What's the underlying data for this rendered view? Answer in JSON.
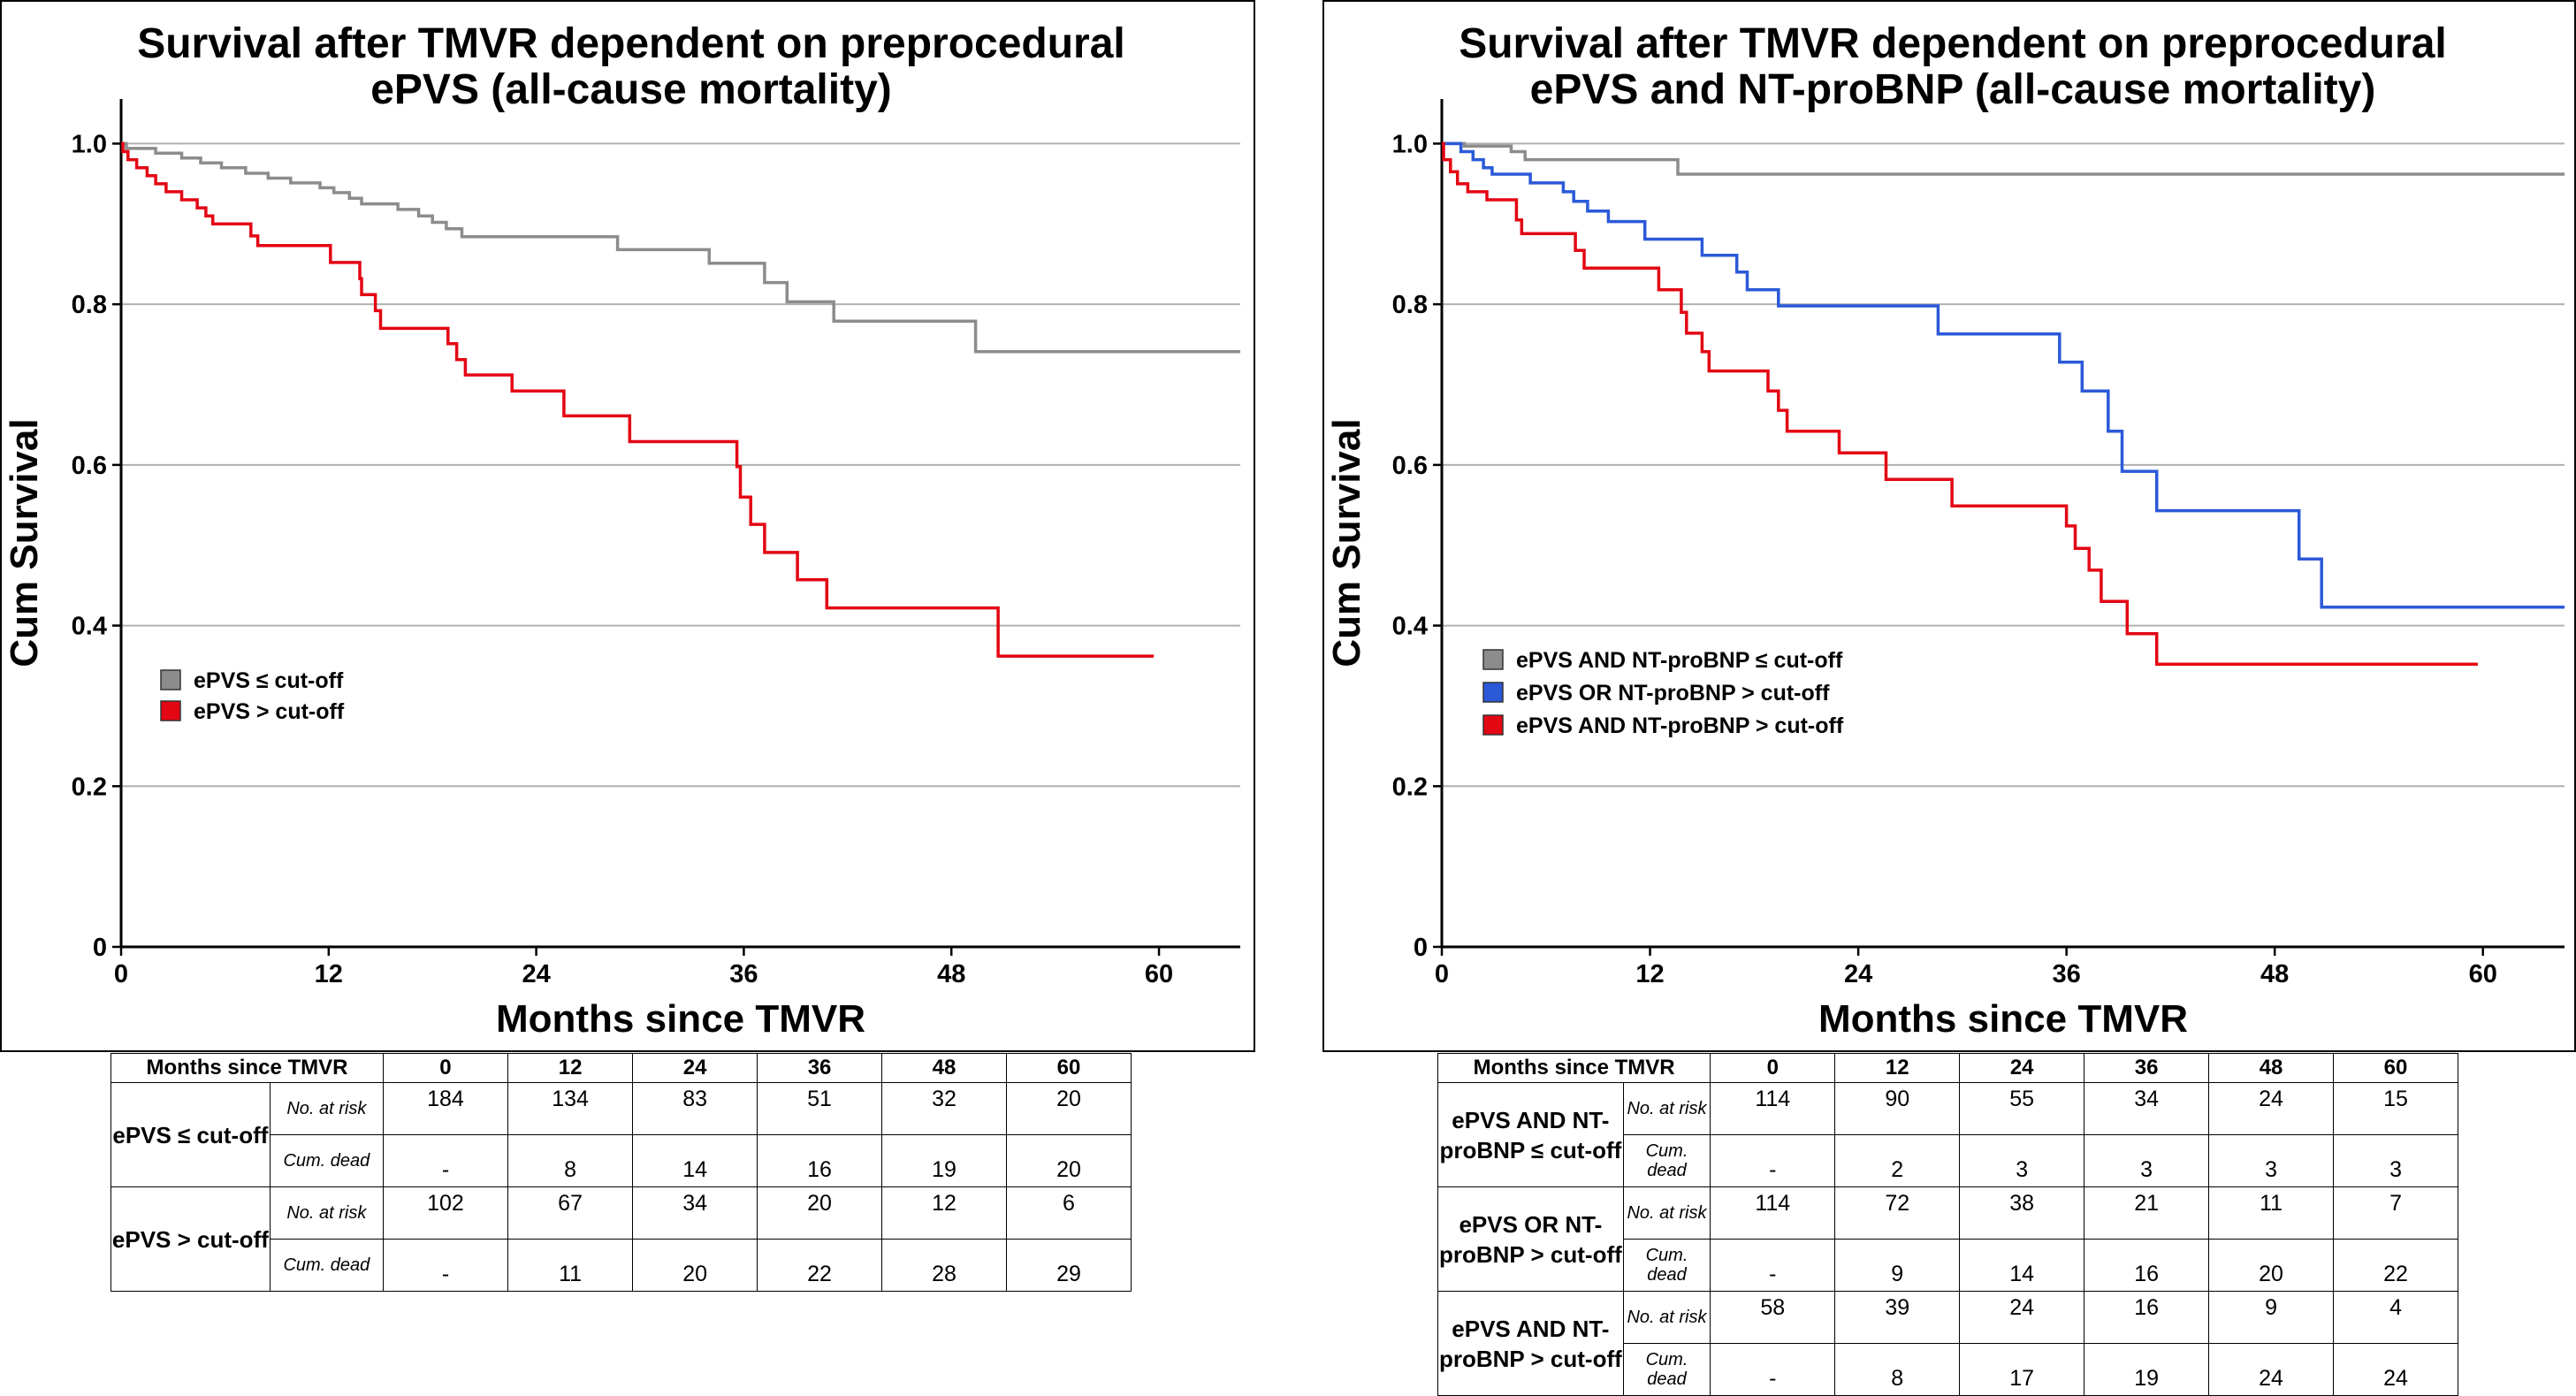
{
  "chart_data": [
    {
      "type": "line",
      "title": [
        "Survival after TMVR dependent on preprocedural",
        "ePVS (all-cause mortality)"
      ],
      "xlabel": "Months since TMVR",
      "ylabel": "Cum Survival",
      "xlim": [
        0,
        64.7
      ],
      "ylim": [
        0,
        1.05
      ],
      "xticks": [
        "0",
        "12",
        "24",
        "36",
        "48",
        "60"
      ],
      "yticks": [
        "0",
        "0.2",
        "0.4",
        "0.6",
        "0.8",
        "1.0"
      ],
      "grid": "horizontal",
      "legend_position": "center-left",
      "series": [
        {
          "name": "ePVS ≤ cut-off",
          "color": "#8c8c8c",
          "points": [
            [
              0,
              1.0
            ],
            [
              0.3,
              0.994
            ],
            [
              2,
              0.988
            ],
            [
              3.5,
              0.982
            ],
            [
              4.6,
              0.976
            ],
            [
              5.8,
              0.97
            ],
            [
              7.2,
              0.963
            ],
            [
              8.5,
              0.957
            ],
            [
              9.8,
              0.951
            ],
            [
              11.5,
              0.945
            ],
            [
              12.3,
              0.939
            ],
            [
              13.2,
              0.932
            ],
            [
              13.9,
              0.925
            ],
            [
              16,
              0.918
            ],
            [
              17.2,
              0.91
            ],
            [
              18,
              0.902
            ],
            [
              18.8,
              0.894
            ],
            [
              19.7,
              0.884
            ],
            [
              28.7,
              0.868
            ],
            [
              34,
              0.851
            ],
            [
              37.2,
              0.827
            ],
            [
              38.5,
              0.803
            ],
            [
              41.2,
              0.779
            ],
            [
              49.4,
              0.741
            ],
            [
              64.7,
              0.741
            ]
          ]
        },
        {
          "name": "ePVS > cut-off",
          "color": "#e30613",
          "points": [
            [
              0,
              1.0
            ],
            [
              0.1,
              0.99
            ],
            [
              0.4,
              0.98
            ],
            [
              0.9,
              0.97
            ],
            [
              1.5,
              0.96
            ],
            [
              2,
              0.95
            ],
            [
              2.6,
              0.94
            ],
            [
              3.5,
              0.93
            ],
            [
              4.4,
              0.92
            ],
            [
              4.9,
              0.91
            ],
            [
              5.3,
              0.9
            ],
            [
              7.5,
              0.885
            ],
            [
              7.9,
              0.873
            ],
            [
              12.1,
              0.852
            ],
            [
              13.8,
              0.832
            ],
            [
              13.9,
              0.812
            ],
            [
              14.7,
              0.792
            ],
            [
              15,
              0.77
            ],
            [
              18.9,
              0.751
            ],
            [
              19.4,
              0.731
            ],
            [
              19.9,
              0.712
            ],
            [
              22.6,
              0.692
            ],
            [
              25.6,
              0.661
            ],
            [
              29.4,
              0.629
            ],
            [
              35.6,
              0.598
            ],
            [
              35.8,
              0.56
            ],
            [
              36.4,
              0.526
            ],
            [
              37.2,
              0.491
            ],
            [
              39.1,
              0.457
            ],
            [
              40.8,
              0.422
            ],
            [
              50.7,
              0.362
            ],
            [
              59.7,
              0.362
            ]
          ]
        }
      ],
      "risk_table": {
        "header": "Months since TMVR",
        "times": [
          "0",
          "12",
          "24",
          "36",
          "48",
          "60"
        ],
        "no_at_risk_label": "No. at risk",
        "cum_dead_label": "Cum. dead",
        "groups": [
          {
            "label": "ePVS ≤ cut-off",
            "at_risk": [
              "184",
              "134",
              "83",
              "51",
              "32",
              "20"
            ],
            "cum_dead": [
              "-",
              "8",
              "14",
              "16",
              "19",
              "20"
            ]
          },
          {
            "label": "ePVS > cut-off",
            "at_risk": [
              "102",
              "67",
              "34",
              "20",
              "12",
              "6"
            ],
            "cum_dead": [
              "-",
              "11",
              "20",
              "22",
              "28",
              "29"
            ]
          }
        ]
      }
    },
    {
      "type": "line",
      "title": [
        "Survival after TMVR dependent on preprocedural",
        "ePVS and NT-proBNP (all-cause mortality)"
      ],
      "xlabel": "Months since TMVR",
      "ylabel": "Cum Survival",
      "xlim": [
        0,
        64.7
      ],
      "ylim": [
        0,
        1.05
      ],
      "xticks": [
        "0",
        "12",
        "24",
        "36",
        "48",
        "60"
      ],
      "yticks": [
        "0",
        "0.2",
        "0.4",
        "0.6",
        "0.8",
        "1.0"
      ],
      "grid": "horizontal",
      "legend_position": "center-left",
      "series": [
        {
          "name": "ePVS AND NT-proBNP ≤ cut-off",
          "color": "#8c8c8c",
          "points": [
            [
              0,
              1.0
            ],
            [
              1.3,
              0.997
            ],
            [
              4,
              0.99
            ],
            [
              4.8,
              0.98
            ],
            [
              13.6,
              0.962
            ],
            [
              64.7,
              0.962
            ]
          ]
        },
        {
          "name": "ePVS OR NT-proBNP > cut-off",
          "color": "#2b59d8",
          "points": [
            [
              0,
              1.0
            ],
            [
              1.1,
              0.99
            ],
            [
              1.8,
              0.98
            ],
            [
              2.4,
              0.97
            ],
            [
              2.9,
              0.962
            ],
            [
              5.1,
              0.951
            ],
            [
              7,
              0.94
            ],
            [
              7.6,
              0.928
            ],
            [
              8.4,
              0.916
            ],
            [
              9.6,
              0.903
            ],
            [
              11.7,
              0.881
            ],
            [
              15,
              0.861
            ],
            [
              17,
              0.84
            ],
            [
              17.6,
              0.818
            ],
            [
              19.4,
              0.798
            ],
            [
              28.6,
              0.763
            ],
            [
              35.6,
              0.728
            ],
            [
              36.9,
              0.692
            ],
            [
              38.4,
              0.642
            ],
            [
              39.2,
              0.592
            ],
            [
              41.2,
              0.543
            ],
            [
              49.4,
              0.483
            ],
            [
              50.7,
              0.423
            ],
            [
              64.7,
              0.423
            ]
          ]
        },
        {
          "name": "ePVS AND NT-proBNP > cut-off",
          "color": "#e30613",
          "points": [
            [
              0,
              1.0
            ],
            [
              0.1,
              0.98
            ],
            [
              0.5,
              0.965
            ],
            [
              0.9,
              0.95
            ],
            [
              1.5,
              0.94
            ],
            [
              2.6,
              0.93
            ],
            [
              4.3,
              0.905
            ],
            [
              4.6,
              0.888
            ],
            [
              7.7,
              0.867
            ],
            [
              8.2,
              0.845
            ],
            [
              12.5,
              0.818
            ],
            [
              13.8,
              0.79
            ],
            [
              14.1,
              0.764
            ],
            [
              15,
              0.741
            ],
            [
              15.4,
              0.717
            ],
            [
              18.8,
              0.692
            ],
            [
              19.4,
              0.668
            ],
            [
              19.9,
              0.642
            ],
            [
              22.9,
              0.615
            ],
            [
              25.6,
              0.582
            ],
            [
              29.4,
              0.549
            ],
            [
              36,
              0.524
            ],
            [
              36.5,
              0.496
            ],
            [
              37.3,
              0.469
            ],
            [
              38,
              0.43
            ],
            [
              39.5,
              0.39
            ],
            [
              41.2,
              0.352
            ],
            [
              59.7,
              0.352
            ]
          ]
        }
      ],
      "risk_table": {
        "header": "Months since TMVR",
        "times": [
          "0",
          "12",
          "24",
          "36",
          "48",
          "60"
        ],
        "no_at_risk_label": "No. at risk",
        "cum_dead_label": "Cum. dead",
        "groups": [
          {
            "label": "ePVS AND NT-proBNP ≤ cut-off",
            "at_risk": [
              "114",
              "90",
              "55",
              "34",
              "24",
              "15"
            ],
            "cum_dead": [
              "-",
              "2",
              "3",
              "3",
              "3",
              "3"
            ]
          },
          {
            "label": "ePVS OR NT-proBNP > cut-off",
            "at_risk": [
              "114",
              "72",
              "38",
              "21",
              "11",
              "7"
            ],
            "cum_dead": [
              "-",
              "9",
              "14",
              "16",
              "20",
              "22"
            ]
          },
          {
            "label": "ePVS AND NT-proBNP > cut-off",
            "at_risk": [
              "58",
              "39",
              "24",
              "16",
              "9",
              "4"
            ],
            "cum_dead": [
              "-",
              "8",
              "17",
              "19",
              "24",
              "24"
            ]
          }
        ]
      }
    }
  ]
}
